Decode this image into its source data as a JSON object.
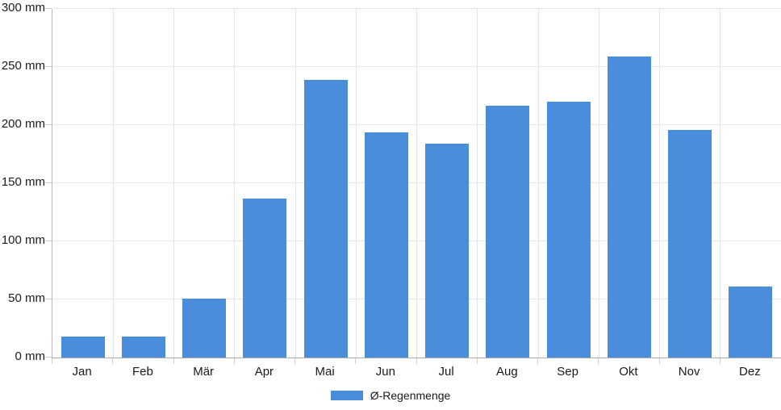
{
  "chart_data": {
    "type": "bar",
    "title": "",
    "categories": [
      "Jan",
      "Feb",
      "Mär",
      "Apr",
      "Mai",
      "Jun",
      "Jul",
      "Aug",
      "Sep",
      "Okt",
      "Nov",
      "Dez"
    ],
    "series": [
      {
        "name": "Ø-Regenmenge",
        "values": [
          18,
          18,
          51,
          137,
          239,
          194,
          184,
          217,
          220,
          259,
          196,
          61
        ]
      }
    ],
    "unit": "mm",
    "xlabel": "",
    "ylabel": "",
    "ylim": [
      0,
      300
    ],
    "y_ticks": [
      0,
      50,
      100,
      150,
      200,
      250,
      300
    ],
    "y_tick_labels": [
      "0 mm",
      "50 mm",
      "100 mm",
      "150 mm",
      "200 mm",
      "250 mm",
      "300 mm"
    ],
    "grid": true,
    "legend_position": "bottom-center",
    "colors": {
      "bar": "#4a8ddb",
      "grid": "#e4e4e4",
      "axis": "#ababab",
      "tick": "#cfcfcf",
      "text": "#1a1a1a",
      "background": "#ffffff"
    },
    "legend": {
      "label": "Ø-Regenmenge",
      "swatch_color": "#4a8ddb"
    }
  }
}
